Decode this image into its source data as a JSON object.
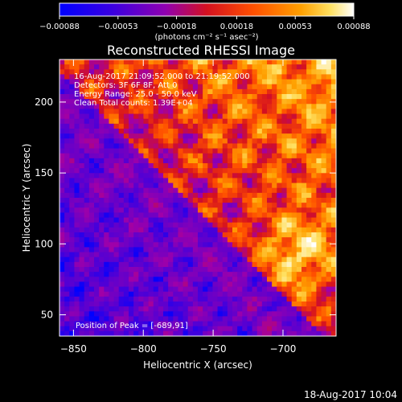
{
  "chart_data": {
    "type": "heatmap",
    "title": "Reconstructed RHESSI Image",
    "xlabel": "Heliocentric X (arcsec)",
    "ylabel": "Heliocentric Y (arcsec)",
    "xlim": [
      -860,
      -662
    ],
    "ylim": [
      35,
      230
    ],
    "x_ticks": [
      -850,
      -800,
      -750,
      -700
    ],
    "x_tick_labels": [
      "−850",
      "−800",
      "−750",
      "−700"
    ],
    "y_ticks": [
      50,
      100,
      150,
      200
    ],
    "y_tick_labels": [
      "50",
      "100",
      "150",
      "200"
    ],
    "colorbar": {
      "range": [
        -0.00088,
        0.00088
      ],
      "ticks": [
        -0.00088,
        -0.00053,
        -0.00018,
        0.00018,
        0.00053,
        0.00088
      ],
      "tick_labels": [
        "−0.00088",
        "−0.00053",
        "−0.00018",
        "0.00018",
        "0.00053",
        "0.00088"
      ],
      "unit_label": "(photons cm⁻² s⁻¹ asec⁻²)",
      "colormap": [
        "#0000ff",
        "#5a00d0",
        "#a000a8",
        "#d41020",
        "#ff5000",
        "#ffa000",
        "#ffe060",
        "#ffffff"
      ]
    },
    "annotations": [
      "16-Aug-2017 21:09:52.000 to 21:19:52.000",
      "Detectors: 3F 6F 8F, Att 0",
      "Energy Range: 25.0 - 50.0 keV",
      "Clean    Total counts: 1.39E+04"
    ],
    "peak_label": "Position of Peak = [-689,91]",
    "peak": {
      "x": -689,
      "y": 91
    },
    "footer_date": "18-Aug-2017 10:04"
  }
}
